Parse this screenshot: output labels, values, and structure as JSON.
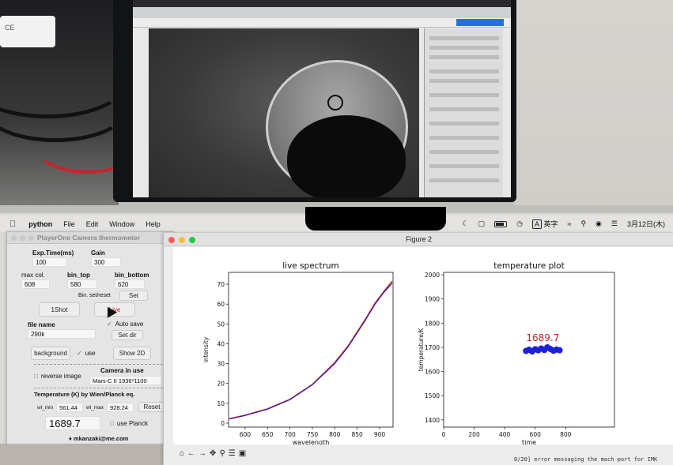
{
  "menubar": {
    "app": "python",
    "items": [
      "File",
      "Edit",
      "Window",
      "Help"
    ],
    "clock": "3月12日(木)",
    "input_method": "英字"
  },
  "thermometer": {
    "title": "PlayerOne Camera thermometer",
    "exp_label": "Exp.Time(ms)",
    "exp_value": "100",
    "gain_label": "Gain",
    "gain_value": "300",
    "maxcol_label": "max col.",
    "maxcol_value": "608",
    "bintop_label": "bin_top",
    "bintop_value": "580",
    "binbottom_label": "bin_bottom",
    "binbottom_value": "620",
    "binset_label": "Bin. set/reset",
    "set_button": "Set",
    "oneshot_button": "1Shot",
    "live_button": "Live",
    "filename_label": "file name",
    "filename_value": "290k",
    "autosave_label": "Auto save",
    "setdir_button": "Set dir",
    "background_button": "background",
    "use_label": "use",
    "show2d_button": "Show 2D",
    "reverse_label": "reverse image",
    "camera_label": "Camera in use",
    "camera_value": "Mars-C II 1936*1100",
    "temp_section": "Temperature (K) by Wien/Planck eq.",
    "wlmin_label": "wl_min",
    "wlmin_value": "561.44",
    "wlmax_label": "wl_max",
    "wlmax_value": "928.24",
    "reset_button": "Reset",
    "temperature_value": "1689.7",
    "planck_label": "use Planck",
    "contact": "mkanzaki@me.com"
  },
  "figure": {
    "window_title": "Figure 2",
    "status_line": "0/20] error messaging the mach port for IMK"
  },
  "chart_data": [
    {
      "type": "line",
      "title": "live spectrum",
      "xlabel": "wavelength",
      "ylabel": "intensity",
      "xlim": [
        563,
        930
      ],
      "ylim": [
        -2,
        76
      ],
      "xticks": [
        600,
        650,
        700,
        750,
        800,
        850,
        900
      ],
      "yticks": [
        0,
        10,
        20,
        30,
        40,
        50,
        60,
        70
      ],
      "series": [
        {
          "color": "#d62728",
          "x": [
            565,
            600,
            650,
            700,
            750,
            800,
            830,
            850,
            870,
            890,
            910,
            928
          ],
          "y": [
            2.2,
            4.0,
            7.2,
            12.0,
            19.5,
            30.5,
            39.0,
            46.0,
            53.0,
            60.5,
            66.5,
            71.5
          ]
        },
        {
          "color": "#1f1fb4",
          "x": [
            565,
            600,
            650,
            700,
            750,
            800,
            830,
            850,
            870,
            890,
            910,
            928
          ],
          "y": [
            2.0,
            3.8,
            7.0,
            11.8,
            19.3,
            30.0,
            38.5,
            45.5,
            52.5,
            60.0,
            66.0,
            70.5
          ]
        }
      ]
    },
    {
      "type": "scatter",
      "title": "temperature plot",
      "xlabel": "time",
      "ylabel": "temperature/K",
      "xlim": [
        0,
        1120
      ],
      "ylim": [
        1370,
        2010
      ],
      "xticks": [
        0,
        200,
        400,
        600,
        800
      ],
      "yticks": [
        1400,
        1500,
        1600,
        1700,
        1800,
        1900,
        2000
      ],
      "annotation": "1689.7",
      "series": [
        {
          "color": "#1f1fd6",
          "x": [
            540,
            560,
            580,
            600,
            620,
            640,
            660,
            680,
            700,
            720,
            740,
            760
          ],
          "y": [
            1685,
            1690,
            1683,
            1692,
            1688,
            1695,
            1689,
            1700,
            1693,
            1686,
            1691,
            1688
          ]
        }
      ]
    }
  ]
}
